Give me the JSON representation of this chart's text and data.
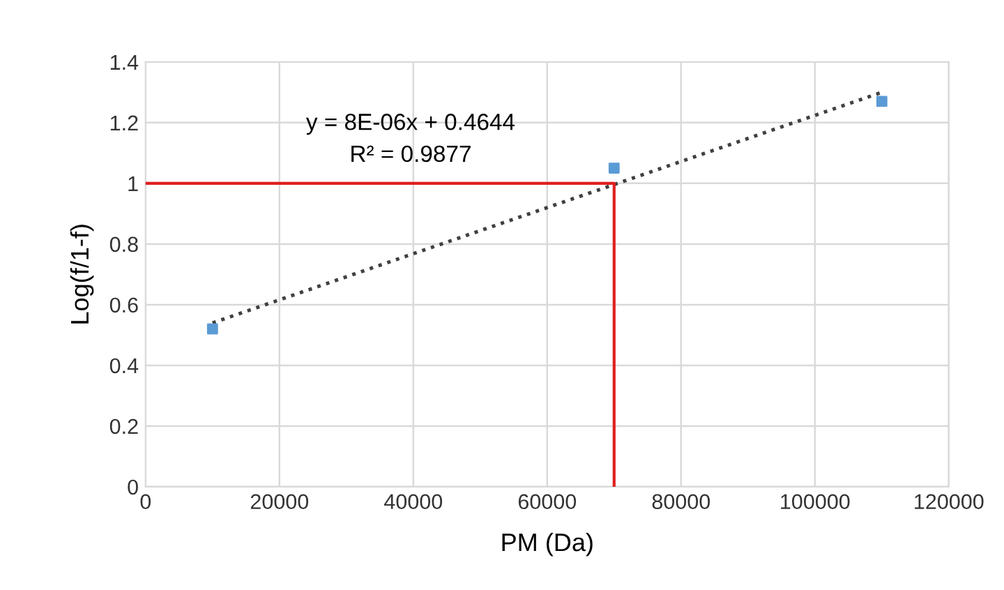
{
  "chart_data": {
    "type": "scatter",
    "xlabel": "PM (Da)",
    "ylabel": "Log(f/1-f)",
    "xlim": [
      0,
      120000
    ],
    "xticks": [
      0,
      20000,
      40000,
      60000,
      80000,
      100000,
      120000
    ],
    "ylim": [
      0,
      1.4
    ],
    "yticks": [
      0,
      {
        "value": 0.2,
        "label": "0.2"
      },
      {
        "value": 0.4,
        "label": "0.4"
      },
      {
        "value": 0.6,
        "label": "0.6"
      },
      {
        "value": 0.8,
        "label": "0.8"
      },
      1,
      {
        "value": 1.2,
        "label": "1.2"
      },
      {
        "value": 1.4,
        "label": "1.4"
      }
    ],
    "grid": true,
    "marker": "square",
    "series": [
      {
        "color": "#5b9bd5",
        "x": [
          10000,
          70000,
          110000
        ],
        "values": [
          0.52,
          1.05,
          1.27
        ]
      },
      {
        "type": "line",
        "color": "#404040",
        "line_style": "dotted",
        "marker": "none",
        "x": [
          10000,
          110000
        ],
        "values": [
          0.54,
          1.3
        ]
      },
      {
        "type": "line",
        "color": "#e02020",
        "line_style": "solid",
        "marker": "none",
        "x": [
          0,
          70000,
          70000
        ],
        "values": [
          1,
          1,
          0
        ]
      }
    ],
    "annotations": [
      "y = 8E-06x + 0.4644",
      "R² = 0.9877"
    ]
  }
}
